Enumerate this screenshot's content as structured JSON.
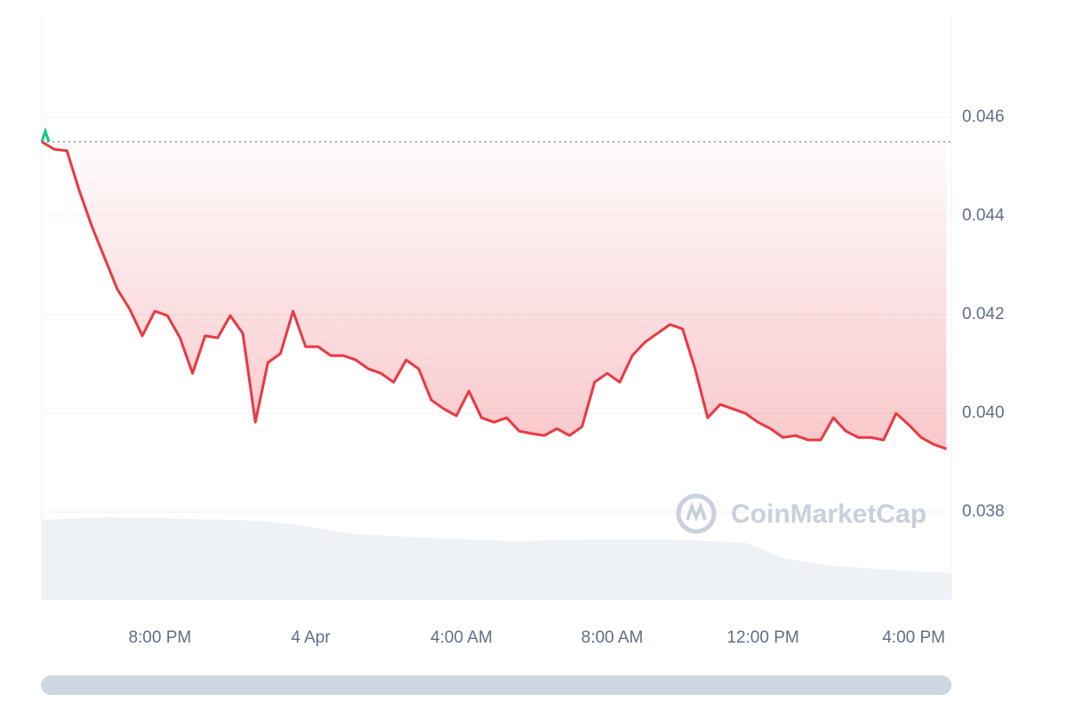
{
  "chart_data": {
    "type": "line",
    "watermark": "CoinMarketCap",
    "color": "#ea3943",
    "baseline_color": "#16c784",
    "x": [
      "3 Apr 16:52",
      "3 Apr 17:12",
      "3 Apr 17:32",
      "3 Apr 17:52",
      "3 Apr 18:12",
      "3 Apr 18:32",
      "3 Apr 18:52",
      "3 Apr 19:12",
      "3 Apr 19:32",
      "3 Apr 19:52",
      "3 Apr 20:12",
      "3 Apr 20:32",
      "3 Apr 20:52",
      "3 Apr 21:12",
      "3 Apr 21:32",
      "3 Apr 21:52",
      "3 Apr 22:12",
      "3 Apr 22:32",
      "3 Apr 22:52",
      "3 Apr 23:12",
      "3 Apr 23:32",
      "3 Apr 23:52",
      "4 Apr 00:12",
      "4 Apr 00:32",
      "4 Apr 00:52",
      "4 Apr 01:12",
      "4 Apr 01:32",
      "4 Apr 01:52",
      "4 Apr 02:12",
      "4 Apr 02:32",
      "4 Apr 02:52",
      "4 Apr 03:12",
      "4 Apr 03:32",
      "4 Apr 03:52",
      "4 Apr 04:12",
      "4 Apr 04:32",
      "4 Apr 04:52",
      "4 Apr 05:12",
      "4 Apr 05:32",
      "4 Apr 05:52",
      "4 Apr 06:12",
      "4 Apr 06:32",
      "4 Apr 06:52",
      "4 Apr 07:12",
      "4 Apr 07:32",
      "4 Apr 07:52",
      "4 Apr 08:12",
      "4 Apr 08:32",
      "4 Apr 08:52",
      "4 Apr 09:12",
      "4 Apr 09:32",
      "4 Apr 09:52",
      "4 Apr 10:12",
      "4 Apr 10:32",
      "4 Apr 10:52",
      "4 Apr 11:12",
      "4 Apr 11:32",
      "4 Apr 11:52",
      "4 Apr 12:12",
      "4 Apr 12:32",
      "4 Apr 12:52",
      "4 Apr 13:12",
      "4 Apr 13:32",
      "4 Apr 13:52",
      "4 Apr 14:12",
      "4 Apr 14:32",
      "4 Apr 14:52",
      "4 Apr 15:12",
      "4 Apr 15:32",
      "4 Apr 15:52",
      "4 Apr 16:12",
      "4 Apr 16:32",
      "4 Apr 16:52"
    ],
    "values": [
      0.0455,
      0.04535,
      0.04532,
      0.0445,
      0.04378,
      0.04315,
      0.04252,
      0.04211,
      0.04157,
      0.04207,
      0.04198,
      0.04153,
      0.04081,
      0.04157,
      0.04153,
      0.04198,
      0.04162,
      0.03982,
      0.04103,
      0.04121,
      0.04207,
      0.04135,
      0.04135,
      0.04117,
      0.04117,
      0.04108,
      0.0409,
      0.04081,
      0.04063,
      0.04108,
      0.0409,
      0.04027,
      0.04009,
      0.03995,
      0.04045,
      0.03991,
      0.03982,
      0.03991,
      0.03964,
      0.03959,
      0.03955,
      0.03969,
      0.03955,
      0.03973,
      0.04063,
      0.04081,
      0.04063,
      0.04117,
      0.04144,
      0.04162,
      0.0418,
      0.04171,
      0.0409,
      0.03991,
      0.04018,
      0.04009,
      0.04,
      0.03982,
      0.03969,
      0.03951,
      0.03955,
      0.03946,
      0.03946,
      0.03991,
      0.03964,
      0.03951,
      0.03951,
      0.03946,
      0.04,
      0.03977,
      0.03951,
      0.03937,
      0.03928
    ],
    "xlim": [
      "3 Apr 16:52",
      "4 Apr 17:00"
    ],
    "xticks": [
      {
        "value": "3 Apr 20:00",
        "label": "8:00 PM"
      },
      {
        "value": "4 Apr 00:00",
        "label": "4 Apr"
      },
      {
        "value": "4 Apr 04:00",
        "label": "4:00 AM"
      },
      {
        "value": "4 Apr 08:00",
        "label": "8:00 AM"
      },
      {
        "value": "4 Apr 12:00",
        "label": "12:00 PM"
      },
      {
        "value": "4 Apr 16:00",
        "label": "4:00 PM"
      }
    ],
    "ylim": [
      0.03622,
      0.04805
    ],
    "yticks": [
      0.038,
      {
        "value": 0.04,
        "label": "0.040"
      },
      0.042,
      0.044,
      0.046
    ],
    "grid": true
  }
}
